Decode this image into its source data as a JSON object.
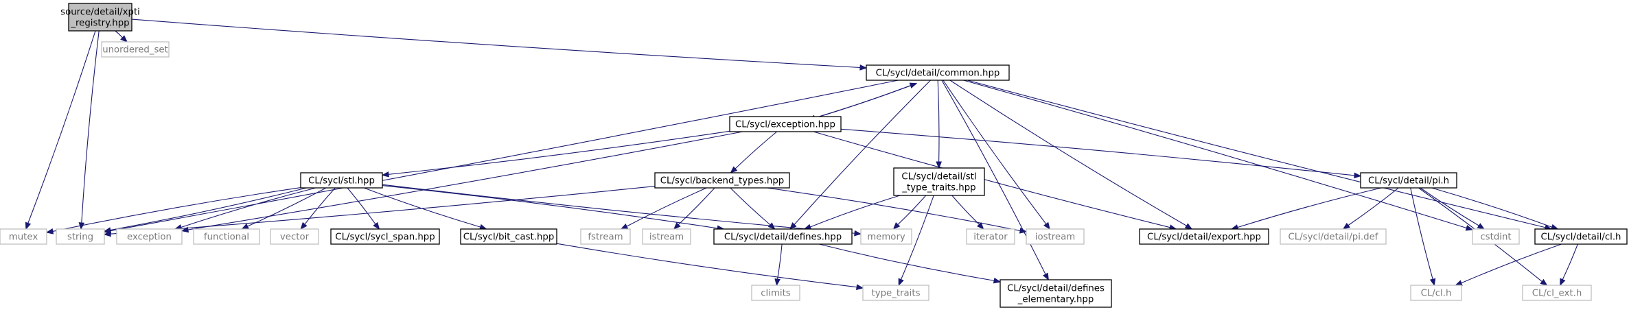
{
  "diagram": {
    "type": "include-dependency-graph",
    "nodes": {
      "root": {
        "label": [
          "source/detail/xpti",
          "_registry.hpp"
        ],
        "kind": "root"
      },
      "unordered_set": {
        "label": [
          "unordered_set"
        ],
        "kind": "external"
      },
      "common": {
        "label": [
          "CL/sycl/detail/common.hpp"
        ],
        "kind": "header"
      },
      "exception": {
        "label": [
          "CL/sycl/exception.hpp"
        ],
        "kind": "header"
      },
      "stl": {
        "label": [
          "CL/sycl/stl.hpp"
        ],
        "kind": "header"
      },
      "backend_types": {
        "label": [
          "CL/sycl/backend_types.hpp"
        ],
        "kind": "header"
      },
      "stl_type_traits": {
        "label": [
          "CL/sycl/detail/stl",
          "_type_traits.hpp"
        ],
        "kind": "header"
      },
      "pi_h": {
        "label": [
          "CL/sycl/detail/pi.h"
        ],
        "kind": "header"
      },
      "mutex": {
        "label": [
          "mutex"
        ],
        "kind": "external"
      },
      "string": {
        "label": [
          "string"
        ],
        "kind": "external"
      },
      "exception_std": {
        "label": [
          "exception"
        ],
        "kind": "external"
      },
      "functional": {
        "label": [
          "functional"
        ],
        "kind": "external"
      },
      "vector": {
        "label": [
          "vector"
        ],
        "kind": "external"
      },
      "sycl_span": {
        "label": [
          "CL/sycl/sycl_span.hpp"
        ],
        "kind": "header"
      },
      "bit_cast": {
        "label": [
          "CL/sycl/bit_cast.hpp"
        ],
        "kind": "header"
      },
      "fstream": {
        "label": [
          "fstream"
        ],
        "kind": "external"
      },
      "istream": {
        "label": [
          "istream"
        ],
        "kind": "external"
      },
      "defines": {
        "label": [
          "CL/sycl/detail/defines.hpp"
        ],
        "kind": "header"
      },
      "memory": {
        "label": [
          "memory"
        ],
        "kind": "external"
      },
      "iterator": {
        "label": [
          "iterator"
        ],
        "kind": "external"
      },
      "iostream": {
        "label": [
          "iostream"
        ],
        "kind": "external"
      },
      "export": {
        "label": [
          "CL/sycl/detail/export.hpp"
        ],
        "kind": "header"
      },
      "pi_def": {
        "label": [
          "CL/sycl/detail/pi.def"
        ],
        "kind": "external"
      },
      "cstdint": {
        "label": [
          "cstdint"
        ],
        "kind": "external"
      },
      "cl_h_detail": {
        "label": [
          "CL/sycl/detail/cl.h"
        ],
        "kind": "header"
      },
      "climits": {
        "label": [
          "climits"
        ],
        "kind": "external"
      },
      "type_traits": {
        "label": [
          "type_traits"
        ],
        "kind": "external"
      },
      "defines_elementary": {
        "label": [
          "CL/sycl/detail/defines",
          "_elementary.hpp"
        ],
        "kind": "header"
      },
      "cl_h": {
        "label": [
          "CL/cl.h"
        ],
        "kind": "external"
      },
      "cl_ext": {
        "label": [
          "CL/cl_ext.h"
        ],
        "kind": "external"
      }
    },
    "edges": [
      [
        "root",
        "unordered_set"
      ],
      [
        "root",
        "common"
      ],
      [
        "root",
        "mutex"
      ],
      [
        "root",
        "string"
      ],
      [
        "common",
        "exception"
      ],
      [
        "exception",
        "common"
      ],
      [
        "common",
        "string"
      ],
      [
        "common",
        "defines"
      ],
      [
        "common",
        "stl_type_traits"
      ],
      [
        "common",
        "iostream"
      ],
      [
        "common",
        "defines_elementary"
      ],
      [
        "common",
        "export"
      ],
      [
        "common",
        "cstdint"
      ],
      [
        "common",
        "cl_h_detail"
      ],
      [
        "exception",
        "stl"
      ],
      [
        "exception",
        "backend_types"
      ],
      [
        "exception",
        "exception_std"
      ],
      [
        "exception",
        "export"
      ],
      [
        "exception",
        "pi_h"
      ],
      [
        "stl",
        "mutex"
      ],
      [
        "stl",
        "string"
      ],
      [
        "stl",
        "exception_std"
      ],
      [
        "stl",
        "functional"
      ],
      [
        "stl",
        "vector"
      ],
      [
        "stl",
        "sycl_span"
      ],
      [
        "stl",
        "bit_cast"
      ],
      [
        "stl",
        "defines"
      ],
      [
        "stl",
        "memory"
      ],
      [
        "backend_types",
        "string"
      ],
      [
        "backend_types",
        "fstream"
      ],
      [
        "backend_types",
        "istream"
      ],
      [
        "backend_types",
        "defines"
      ],
      [
        "backend_types",
        "iostream"
      ],
      [
        "stl_type_traits",
        "defines"
      ],
      [
        "stl_type_traits",
        "memory"
      ],
      [
        "stl_type_traits",
        "iterator"
      ],
      [
        "stl_type_traits",
        "type_traits"
      ],
      [
        "pi_h",
        "export"
      ],
      [
        "pi_h",
        "pi_def"
      ],
      [
        "pi_h",
        "cstdint"
      ],
      [
        "pi_h",
        "cl_h_detail"
      ],
      [
        "pi_h",
        "cl_h"
      ],
      [
        "pi_h",
        "cl_ext"
      ],
      [
        "cl_h_detail",
        "cl_h"
      ],
      [
        "cl_h_detail",
        "cl_ext"
      ],
      [
        "bit_cast",
        "type_traits"
      ],
      [
        "defines",
        "climits"
      ],
      [
        "defines",
        "defines_elementary"
      ]
    ]
  }
}
